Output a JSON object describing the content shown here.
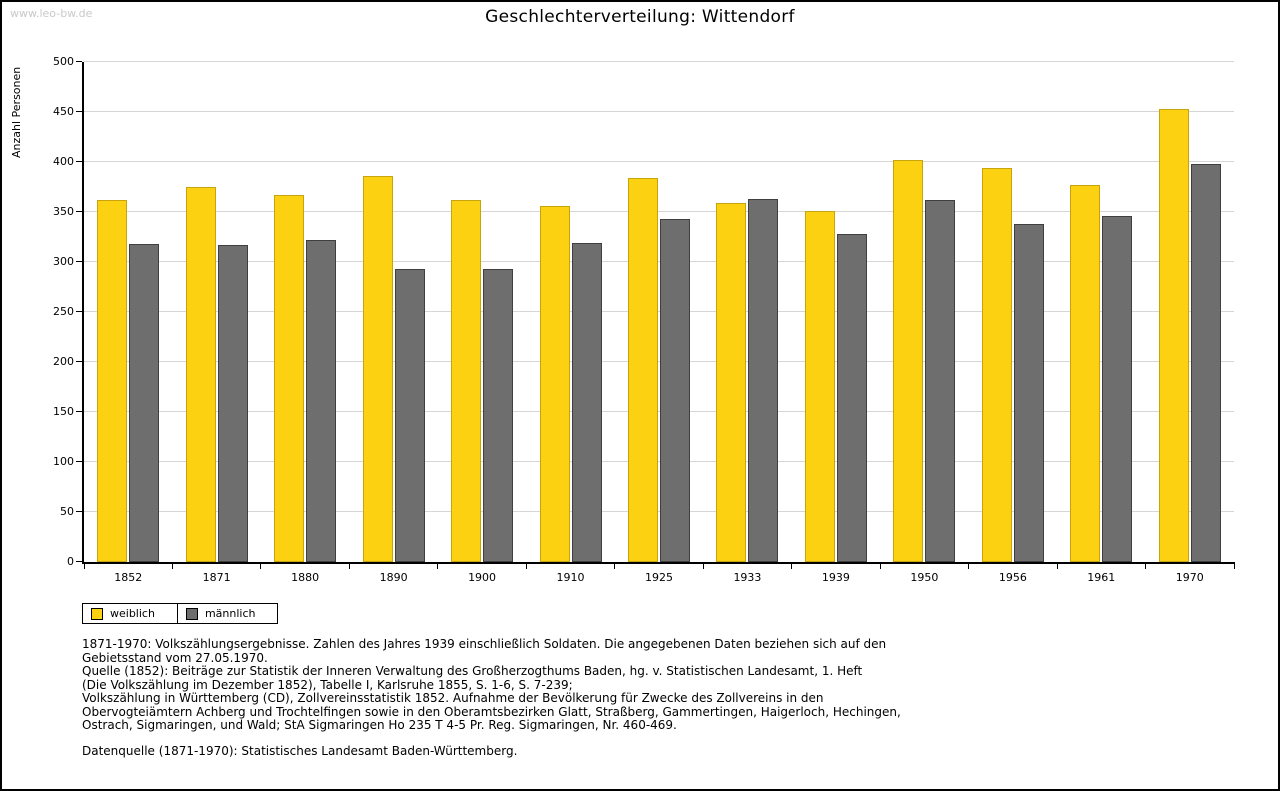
{
  "page": {
    "watermark": "www.leo-bw.de",
    "title": "Geschlechterverteilung: Wittendorf"
  },
  "chart_data": {
    "type": "bar",
    "title": "Geschlechterverteilung: Wittendorf",
    "xlabel": "",
    "ylabel": "Anzahl Personen",
    "ylim": [
      0,
      500
    ],
    "ytick_step": 50,
    "grid": true,
    "legend_position": "bottom-left",
    "categories": [
      "1852",
      "1871",
      "1880",
      "1890",
      "1900",
      "1910",
      "1925",
      "1933",
      "1939",
      "1950",
      "1956",
      "1961",
      "1970"
    ],
    "series": [
      {
        "name": "weiblich",
        "key": "weiblich",
        "color": "#fbd111",
        "border_color": "#c7a30c",
        "values": [
          362,
          375,
          367,
          386,
          362,
          356,
          384,
          359,
          351,
          402,
          394,
          377,
          453
        ]
      },
      {
        "name": "männlich",
        "key": "maennlich",
        "color": "#6e6e6e",
        "border_color": "#3f3f3f",
        "values": [
          318,
          317,
          322,
          293,
          293,
          319,
          343,
          363,
          328,
          362,
          338,
          346,
          398
        ]
      }
    ]
  },
  "footnotes": {
    "lines": [
      "1871-1970: Volkszählungsergebnisse. Zahlen des Jahres 1939 einschließlich Soldaten. Die angegebenen Daten beziehen sich auf den",
      "Gebietsstand vom 27.05.1970.",
      "Quelle (1852): Beiträge zur Statistik der Inneren Verwaltung des Großherzogthums Baden, hg. v. Statistischen Landesamt, 1. Heft",
      "(Die Volkszählung im Dezember 1852), Tabelle I, Karlsruhe 1855, S. 1-6, S. 7-239;",
      "Volkszählung in Württemberg (CD), Zollvereinsstatistik 1852. Aufnahme der Bevölkerung für Zwecke des Zollvereins in den",
      "Obervogteiämtern Achberg und Trochtelfingen sowie in den Oberamtsbezirken Glatt, Straßberg, Gammertingen, Haigerloch, Hechingen,",
      "Ostrach, Sigmaringen, und Wald; StA Sigmaringen Ho 235 T 4-5 Pr. Reg. Sigmaringen, Nr. 460-469."
    ],
    "datasource": "Datenquelle (1871-1970): Statistisches Landesamt Baden-Württemberg."
  }
}
